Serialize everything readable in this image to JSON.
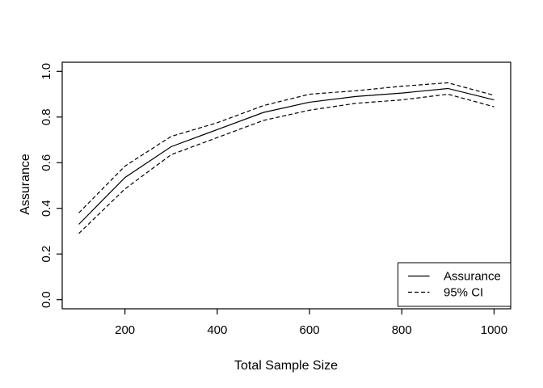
{
  "figure": {
    "background": "#ffffff",
    "line_color": "#000000"
  },
  "chart_data": {
    "type": "line",
    "title": "",
    "xlabel": "Total Sample Size",
    "ylabel": "Assurance",
    "x": [
      100,
      200,
      300,
      400,
      500,
      600,
      700,
      800,
      900,
      1000
    ],
    "series": [
      {
        "name": "Assurance",
        "style": "solid",
        "values": [
          0.33,
          0.535,
          0.67,
          0.745,
          0.82,
          0.865,
          0.89,
          0.905,
          0.925,
          0.875
        ]
      },
      {
        "name": "95% CI upper",
        "style": "dashed",
        "values": [
          0.38,
          0.585,
          0.715,
          0.775,
          0.85,
          0.9,
          0.915,
          0.935,
          0.95,
          0.895
        ]
      },
      {
        "name": "95% CI lower",
        "style": "dashed",
        "values": [
          0.29,
          0.485,
          0.635,
          0.71,
          0.785,
          0.83,
          0.86,
          0.875,
          0.9,
          0.845
        ]
      }
    ],
    "xlim": [
      64,
      1036
    ],
    "ylim": [
      -0.04,
      1.04
    ],
    "xticks": {
      "values": [
        200,
        400,
        600,
        800,
        1000
      ],
      "labels": [
        "200",
        "400",
        "600",
        "800",
        "1000"
      ]
    },
    "yticks": {
      "values": [
        0.0,
        0.2,
        0.4,
        0.6,
        0.8,
        1.0
      ],
      "labels": [
        "0.0",
        "0.2",
        "0.4",
        "0.6",
        "0.8",
        "1.0"
      ]
    },
    "grid": false,
    "legend": {
      "position": "bottomright",
      "entries": [
        {
          "label": "Assurance",
          "style": "solid"
        },
        {
          "label": "95% CI",
          "style": "dashed"
        }
      ]
    }
  }
}
